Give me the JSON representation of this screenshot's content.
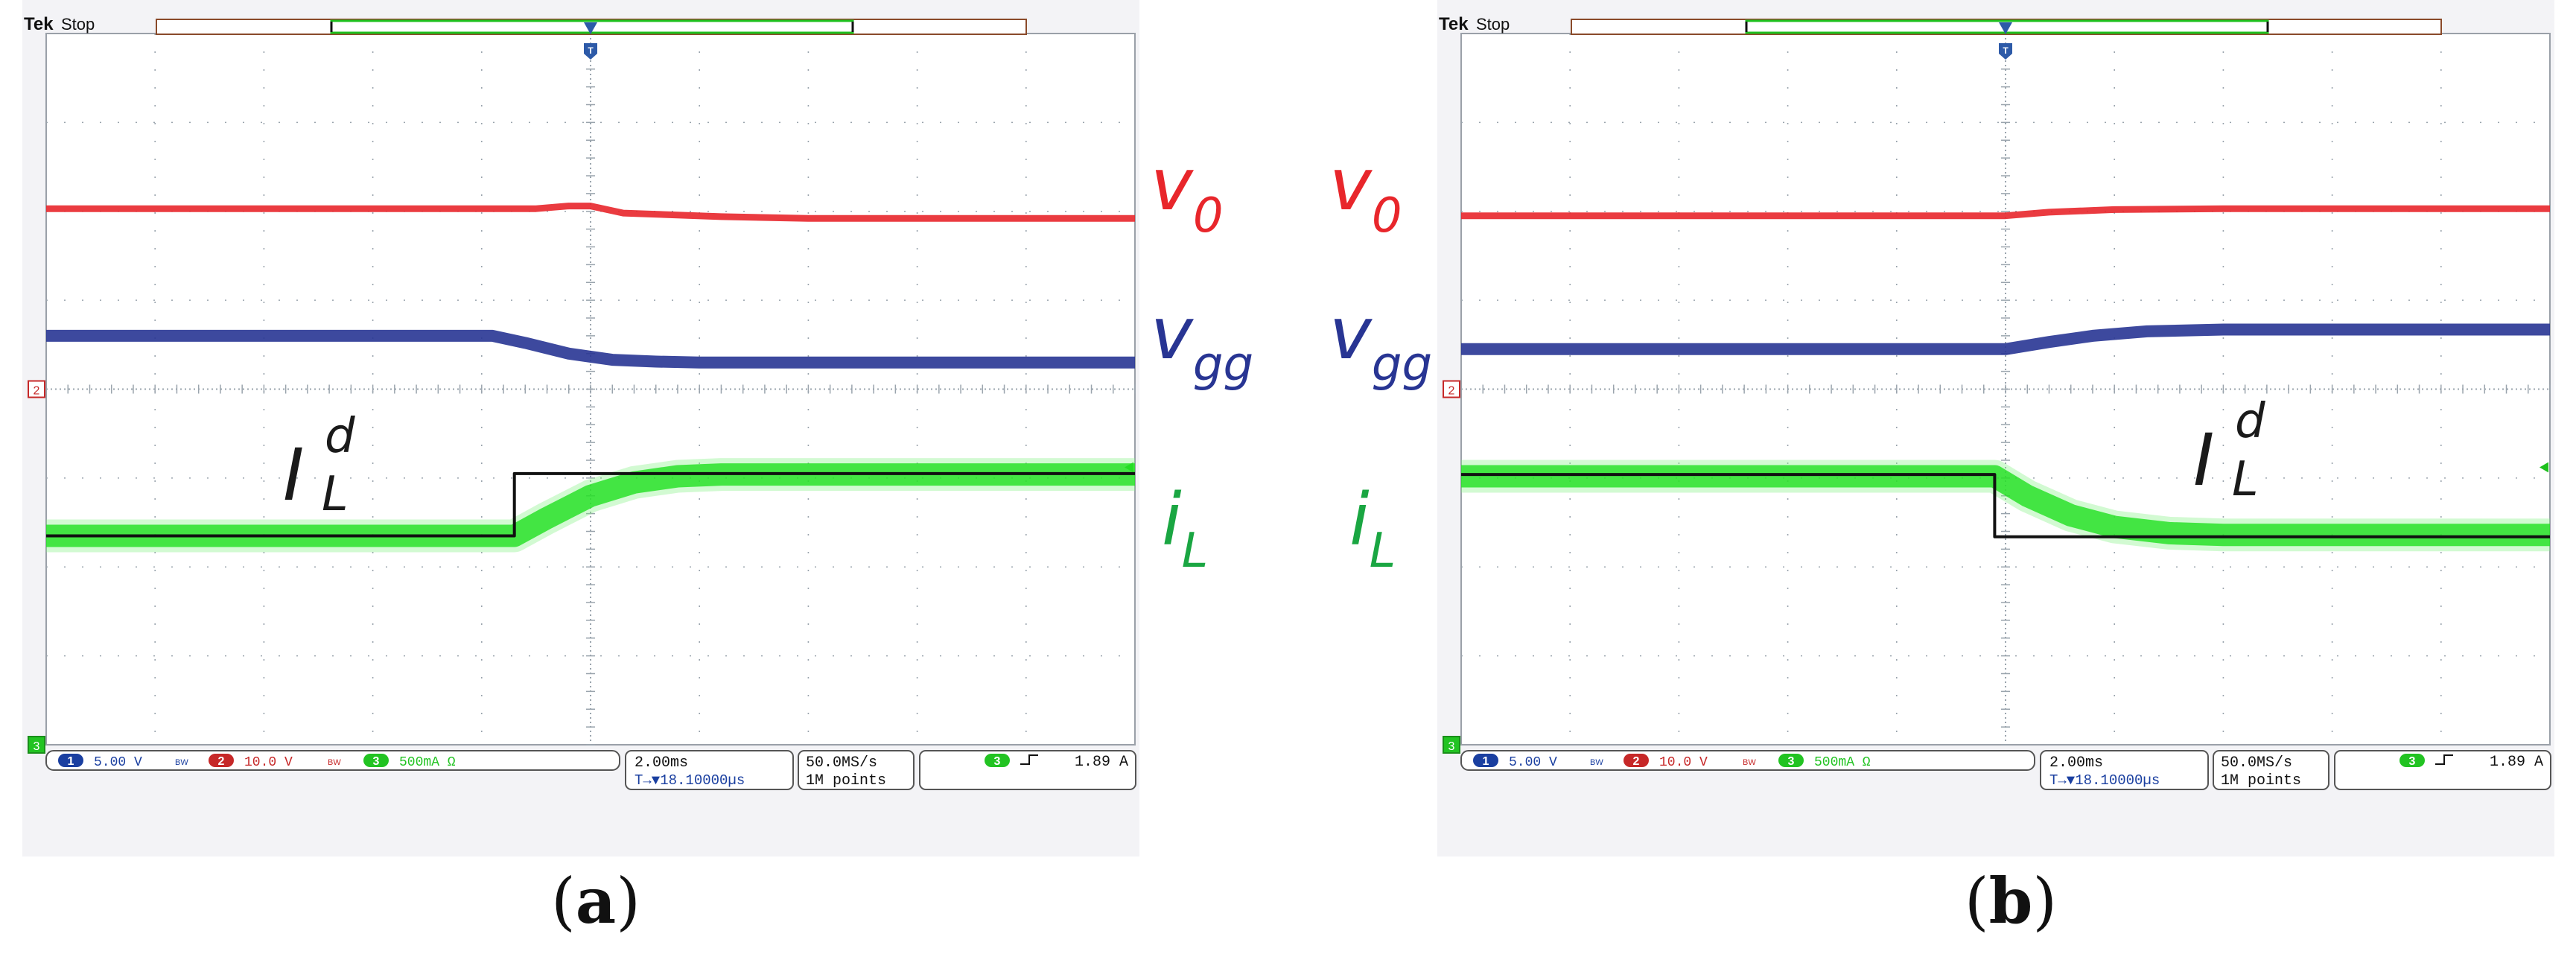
{
  "panels": [
    {
      "id": "a",
      "caption_letter": "a",
      "tek": "Tek",
      "stop": "Stop",
      "ch1_num": "1",
      "ch1_scale": "5.00 V",
      "ch1_coupling": "BW",
      "ch2_num": "2",
      "ch2_scale": "10.0 V",
      "ch2_coupling": "BW",
      "ch3_num": "3",
      "ch3_scale": "500mA Ω",
      "ch3_coupling": "BW",
      "timebase": "2.00ms",
      "trigger_pos": "T→▼18.10000µs",
      "sample_rate": "50.0MS/s",
      "record_length": "1M points",
      "trig_ch": "3",
      "trig_level": "1.89 A",
      "label_v0": "v",
      "label_v0_sub": "0",
      "label_vgg": "v",
      "label_vgg_sub": "gg",
      "label_il": "i",
      "label_il_sub": "L",
      "label_ild": "I",
      "label_ild_sup": "d",
      "label_ild_sub": "L"
    },
    {
      "id": "b",
      "caption_letter": "b",
      "tek": "Tek",
      "stop": "Stop",
      "ch1_num": "1",
      "ch1_scale": "5.00 V",
      "ch1_coupling": "BW",
      "ch2_num": "2",
      "ch2_scale": "10.0 V",
      "ch2_coupling": "BW",
      "ch3_num": "3",
      "ch3_scale": "500mA Ω",
      "ch3_coupling": "BW",
      "timebase": "2.00ms",
      "trigger_pos": "T→▼18.10000µs",
      "sample_rate": "50.0MS/s",
      "record_length": "1M points",
      "trig_ch": "3",
      "trig_level": "1.89 A",
      "label_v0": "v",
      "label_v0_sub": "0",
      "label_vgg": "v",
      "label_vgg_sub": "gg",
      "label_il": "i",
      "label_il_sub": "L",
      "label_ild": "I",
      "label_ild_sup": "d",
      "label_ild_sub": "L"
    }
  ],
  "colors": {
    "v0": "#e8262b",
    "vgg": "#283593",
    "il": "#1fe01f",
    "il_text": "#1aa642",
    "ref": "#111111",
    "grid": "#9aa4ad",
    "screen_bg": "#ffffff",
    "bezel": "#f3f3f6"
  },
  "chart_data": [
    {
      "type": "line",
      "panel": "a",
      "x_divisions": 10,
      "y_divisions": 8,
      "time_per_div_ms": 2.0,
      "grid": true,
      "series": [
        {
          "name": "v0",
          "x": [
            0,
            4.5,
            4.8,
            5.0,
            5.3,
            6.2,
            7.0,
            10
          ],
          "y": [
            6.03,
            6.03,
            6.06,
            6.06,
            5.98,
            5.94,
            5.92,
            5.92
          ]
        },
        {
          "name": "vgg",
          "x": [
            0,
            4.1,
            4.4,
            4.8,
            5.2,
            5.6,
            6.0,
            10
          ],
          "y": [
            4.6,
            4.6,
            4.52,
            4.4,
            4.33,
            4.31,
            4.3,
            4.3
          ]
        },
        {
          "name": "iL",
          "x": [
            0,
            4.3,
            4.6,
            5.0,
            5.4,
            5.8,
            6.2,
            10
          ],
          "y": [
            2.35,
            2.35,
            2.55,
            2.8,
            2.95,
            3.02,
            3.04,
            3.04
          ]
        },
        {
          "name": "IL d",
          "x": [
            0,
            4.3,
            4.3,
            10
          ],
          "y": [
            2.35,
            2.35,
            3.05,
            3.05
          ]
        }
      ]
    },
    {
      "type": "line",
      "panel": "b",
      "x_divisions": 10,
      "y_divisions": 8,
      "time_per_div_ms": 2.0,
      "grid": true,
      "series": [
        {
          "name": "v0",
          "x": [
            0,
            5.0,
            5.4,
            6.0,
            7.0,
            10
          ],
          "y": [
            5.95,
            5.95,
            5.99,
            6.02,
            6.03,
            6.03
          ]
        },
        {
          "name": "vgg",
          "x": [
            0,
            5.0,
            5.4,
            5.8,
            6.3,
            7.0,
            10
          ],
          "y": [
            4.45,
            4.45,
            4.53,
            4.6,
            4.65,
            4.67,
            4.67
          ]
        },
        {
          "name": "iL",
          "x": [
            0,
            4.9,
            5.2,
            5.6,
            6.0,
            6.5,
            7.0,
            10
          ],
          "y": [
            3.02,
            3.02,
            2.8,
            2.58,
            2.45,
            2.38,
            2.36,
            2.36
          ]
        },
        {
          "name": "IL d",
          "x": [
            0,
            4.9,
            4.9,
            10
          ],
          "y": [
            3.04,
            3.04,
            2.34,
            2.34
          ]
        }
      ]
    }
  ]
}
